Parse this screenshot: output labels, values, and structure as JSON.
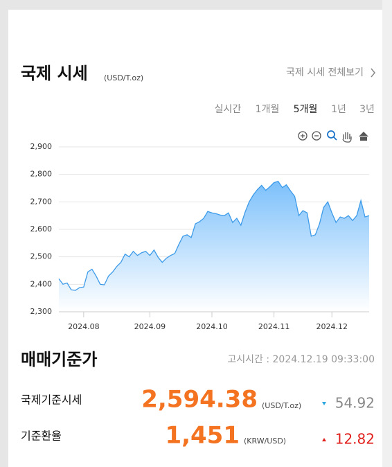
{
  "header": {
    "title": "국제 시세",
    "unit": "(USD/T.oz)",
    "link": "국제 시세 전체보기"
  },
  "tabs": [
    "실시간",
    "1개월",
    "5개월",
    "1년",
    "3년"
  ],
  "chart_data": {
    "type": "line",
    "categories": [
      null,
      null,
      null,
      null,
      null,
      null,
      "2024.08",
      null,
      null,
      null,
      null,
      null,
      null,
      null,
      null,
      null,
      null,
      null,
      null,
      null,
      null,
      null,
      "2024.09",
      null,
      null,
      null,
      null,
      null,
      null,
      null,
      null,
      null,
      null,
      null,
      null,
      null,
      null,
      "2024.10",
      null,
      null,
      null,
      null,
      null,
      null,
      null,
      null,
      null,
      null,
      null,
      null,
      null,
      null,
      "2024.11",
      null,
      null,
      null,
      null,
      null,
      null,
      null,
      null,
      null,
      null,
      null,
      null,
      null,
      "2024.12",
      null,
      null,
      null,
      null,
      null,
      null,
      null,
      null,
      null
    ],
    "values": [
      2420,
      2400,
      2405,
      2380,
      2378,
      2388,
      2390,
      2445,
      2455,
      2430,
      2400,
      2398,
      2430,
      2445,
      2465,
      2480,
      2510,
      2500,
      2520,
      2505,
      2515,
      2520,
      2505,
      2525,
      2498,
      2480,
      2495,
      2505,
      2512,
      2545,
      2575,
      2580,
      2570,
      2620,
      2628,
      2640,
      2665,
      2660,
      2657,
      2652,
      2650,
      2660,
      2625,
      2640,
      2615,
      2662,
      2700,
      2725,
      2745,
      2760,
      2742,
      2755,
      2770,
      2775,
      2752,
      2762,
      2740,
      2720,
      2650,
      2668,
      2660,
      2575,
      2580,
      2620,
      2680,
      2700,
      2660,
      2625,
      2645,
      2640,
      2650,
      2632,
      2650,
      2705,
      2645,
      2650
    ],
    "color": "#3d9be9",
    "ylim": [
      2300,
      2900
    ],
    "yticks": [
      {
        "value": 2300,
        "label": "2,300"
      },
      {
        "value": 2400,
        "label": "2,400"
      },
      {
        "value": 2500,
        "label": "2,500"
      },
      {
        "value": 2600,
        "label": "2,600"
      },
      {
        "value": 2700,
        "label": "2,700"
      },
      {
        "value": 2800,
        "label": "2,800"
      },
      {
        "value": 2900,
        "label": "2,900"
      }
    ],
    "grid": true
  },
  "section": {
    "title": "매매기준가",
    "time": "고시시간 : 2024.12.19 09:33:00",
    "rows": [
      {
        "label": "국제기준시세",
        "value": "2,594.38",
        "unit": "(USD/T.oz)",
        "change": "54.92"
      },
      {
        "label": "기준환율",
        "value": "1,451",
        "unit": "(KRW/USD)",
        "change": "12.82"
      }
    ]
  }
}
